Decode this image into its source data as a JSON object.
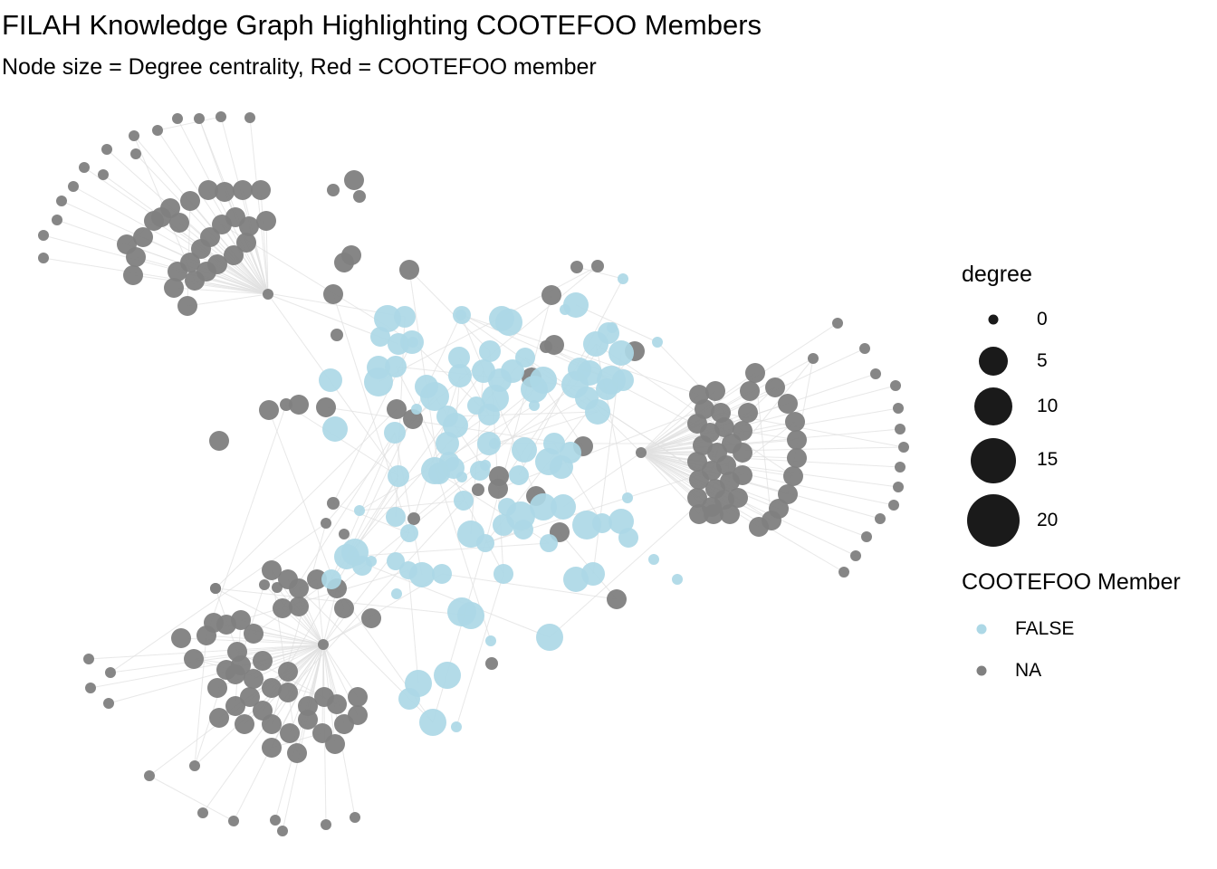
{
  "title": "FILAH Knowledge Graph Highlighting COOTEFOO Members",
  "subtitle": "Node size = Degree centrality, Red = COOTEFOO member",
  "colors": {
    "member_false": "#add8e6",
    "member_na": "#808080",
    "edge": "#e0e0e0",
    "legend_key": "#1a1a1a"
  },
  "legend": {
    "size": {
      "title": "degree",
      "entries": [
        0,
        5,
        10,
        15,
        20
      ]
    },
    "color": {
      "title": "COOTEFOO Member",
      "entries": [
        {
          "label": "FALSE",
          "color": "#add8e6"
        },
        {
          "label": "NA",
          "color": "#808080"
        }
      ]
    }
  }
}
